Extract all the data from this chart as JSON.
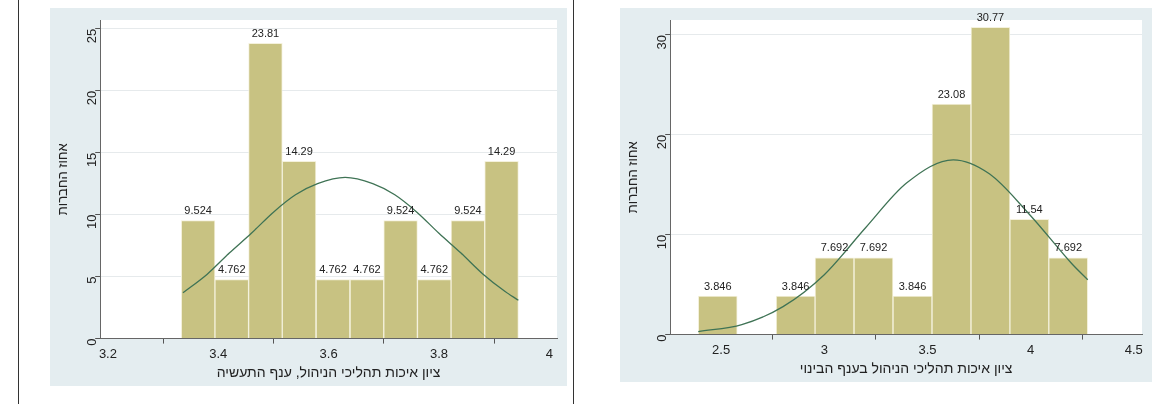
{
  "chart_data": [
    {
      "type": "histogram",
      "xlabel": "ציון איכות תהליכי הניהול, ענף התעשיה",
      "ylabel": "אחוז החברות",
      "bins": [
        3.333,
        3.394,
        3.455,
        3.516,
        3.577,
        3.639,
        3.7,
        3.761,
        3.822,
        3.883,
        3.944
      ],
      "values": [
        9.524,
        4.762,
        23.81,
        14.29,
        4.762,
        4.762,
        9.524,
        4.762,
        9.524,
        14.29
      ],
      "color": "#c8c282",
      "value_labels": [
        "9.524",
        "4.762",
        "23.81",
        "14.29",
        "4.762",
        "4.762",
        "9.524",
        "4.762",
        "9.524",
        "14.29"
      ],
      "xlim": [
        3.186,
        4.014
      ],
      "xticks": [
        3.2,
        3.4,
        3.6,
        3.8,
        4
      ],
      "ylim": [
        0,
        25.7
      ],
      "yticks": [
        0,
        5,
        10,
        15,
        20,
        25
      ],
      "grid": "y",
      "series": [
        {
          "type": "line",
          "color": "#3f7355",
          "x": [
            3.336,
            3.38,
            3.42,
            3.46,
            3.5,
            3.54,
            3.58,
            3.63,
            3.68,
            3.72,
            3.76,
            3.8,
            3.84,
            3.88,
            3.92,
            3.944
          ],
          "values": [
            3.7,
            5.2,
            6.9,
            8.5,
            10.2,
            11.6,
            12.5,
            13,
            12.5,
            11.6,
            10.2,
            8.5,
            6.9,
            5.2,
            3.8,
            3.1
          ]
        }
      ]
    },
    {
      "type": "histogram",
      "xlabel": "ציון איכות תהליכי הניהול בענף הבינוי",
      "ylabel": "אחוז החברות",
      "bins": [
        2.389,
        2.578,
        2.767,
        2.955,
        3.144,
        3.333,
        3.522,
        3.711,
        3.9,
        4.088,
        4.277
      ],
      "values": [
        3.846,
        0,
        3.846,
        7.692,
        7.692,
        3.846,
        23.08,
        30.77,
        11.54,
        7.692
      ],
      "value_labels": [
        "3.846",
        null,
        "3.846",
        "7.692",
        "7.692",
        "3.846",
        "23.08",
        "30.77",
        "11.54",
        "7.692"
      ],
      "color": "#c8c282",
      "xlim": [
        2.253,
        4.54
      ],
      "xticks": [
        2.5,
        3,
        3.5,
        4,
        4.5
      ],
      "ylim": [
        0,
        31.5
      ],
      "yticks": [
        0,
        10,
        20,
        30
      ],
      "grid": "y",
      "series": [
        {
          "type": "line",
          "color": "#3f7355",
          "x": [
            2.389,
            2.6,
            2.8,
            3.0,
            3.2,
            3.4,
            3.625,
            3.8,
            4.0,
            4.2,
            4.277
          ],
          "values": [
            0.3,
            1.0,
            2.8,
            6.0,
            10.7,
            15.2,
            17.5,
            16.1,
            11.9,
            7.1,
            5.5
          ]
        }
      ]
    }
  ]
}
